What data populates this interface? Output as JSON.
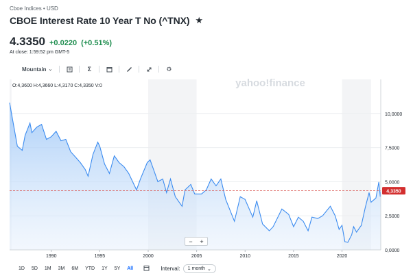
{
  "header": {
    "exchange": "Cboe Indices • USD",
    "title": "CBOE Interest Rate 10 Year T No (^TNX)",
    "star_icon": "star-icon"
  },
  "quote": {
    "price": "4.3350",
    "change": "+0.0220",
    "change_pct": "(+0.51%)",
    "close_time": "At close: 1:59:52 pm GMT-5",
    "change_color": "#1c8c4d"
  },
  "toolbar": {
    "chart_style": "Mountain",
    "icons": [
      "compare-icon",
      "indicators-icon",
      "events-icon",
      "draw-icon",
      "fullscreen-icon",
      "settings-icon"
    ]
  },
  "ohlc": "O:4,3600  H:4,3660  L:4,3170  C:4,3350  V:0",
  "watermark": "yahoo!finance",
  "chart_data": {
    "type": "area",
    "x_range": [
      1985.7,
      2024.0
    ],
    "ylim": [
      0,
      12.5
    ],
    "x_ticks": [
      "1990",
      "1995",
      "2000",
      "2005",
      "2010",
      "2015",
      "2020"
    ],
    "y_ticks": [
      "0,0000",
      "2,5000",
      "5,0000",
      "7,5000",
      "10,0000"
    ],
    "y_tick_values": [
      0,
      2.5,
      5,
      7.5,
      10
    ],
    "current_value": 4.335,
    "current_label": "4,3350",
    "line_color": "#3a8bf0",
    "points": [
      [
        1985.7,
        10.8
      ],
      [
        1986.0,
        9.6
      ],
      [
        1986.5,
        7.6
      ],
      [
        1987.0,
        7.3
      ],
      [
        1987.3,
        8.4
      ],
      [
        1987.8,
        9.3
      ],
      [
        1988.0,
        8.6
      ],
      [
        1988.5,
        9.0
      ],
      [
        1989.0,
        9.2
      ],
      [
        1989.5,
        8.1
      ],
      [
        1990.0,
        8.3
      ],
      [
        1990.5,
        8.7
      ],
      [
        1991.0,
        8.0
      ],
      [
        1991.5,
        8.1
      ],
      [
        1992.0,
        7.2
      ],
      [
        1992.5,
        6.8
      ],
      [
        1993.0,
        6.4
      ],
      [
        1993.5,
        5.9
      ],
      [
        1993.8,
        5.4
      ],
      [
        1994.3,
        7.0
      ],
      [
        1994.8,
        7.9
      ],
      [
        1995.0,
        7.6
      ],
      [
        1995.5,
        6.3
      ],
      [
        1996.0,
        5.6
      ],
      [
        1996.5,
        6.9
      ],
      [
        1997.0,
        6.4
      ],
      [
        1997.5,
        6.1
      ],
      [
        1998.0,
        5.6
      ],
      [
        1998.8,
        4.4
      ],
      [
        1999.2,
        5.2
      ],
      [
        1999.9,
        6.4
      ],
      [
        2000.2,
        6.6
      ],
      [
        2000.6,
        5.8
      ],
      [
        2001.0,
        5.0
      ],
      [
        2001.5,
        5.2
      ],
      [
        2001.9,
        4.2
      ],
      [
        2002.3,
        5.2
      ],
      [
        2002.8,
        3.9
      ],
      [
        2003.5,
        3.2
      ],
      [
        2003.8,
        4.4
      ],
      [
        2004.4,
        4.8
      ],
      [
        2004.8,
        4.1
      ],
      [
        2005.5,
        4.1
      ],
      [
        2006.0,
        4.4
      ],
      [
        2006.5,
        5.2
      ],
      [
        2007.0,
        4.7
      ],
      [
        2007.5,
        5.2
      ],
      [
        2008.0,
        3.7
      ],
      [
        2008.9,
        2.1
      ],
      [
        2009.5,
        3.9
      ],
      [
        2010.0,
        3.7
      ],
      [
        2010.8,
        2.4
      ],
      [
        2011.2,
        3.6
      ],
      [
        2011.8,
        1.9
      ],
      [
        2012.5,
        1.4
      ],
      [
        2012.9,
        1.7
      ],
      [
        2013.8,
        3.0
      ],
      [
        2014.5,
        2.6
      ],
      [
        2015.0,
        1.7
      ],
      [
        2015.5,
        2.4
      ],
      [
        2016.0,
        2.1
      ],
      [
        2016.5,
        1.4
      ],
      [
        2016.9,
        2.4
      ],
      [
        2017.5,
        2.3
      ],
      [
        2018.0,
        2.5
      ],
      [
        2018.8,
        3.2
      ],
      [
        2019.3,
        2.5
      ],
      [
        2019.7,
        1.5
      ],
      [
        2020.0,
        1.8
      ],
      [
        2020.3,
        0.6
      ],
      [
        2020.6,
        0.55
      ],
      [
        2021.0,
        1.1
      ],
      [
        2021.2,
        1.7
      ],
      [
        2021.5,
        1.3
      ],
      [
        2022.0,
        1.8
      ],
      [
        2022.4,
        3.1
      ],
      [
        2022.8,
        4.2
      ],
      [
        2023.0,
        3.5
      ],
      [
        2023.5,
        3.8
      ],
      [
        2023.8,
        4.98
      ],
      [
        2023.95,
        3.9
      ],
      [
        2024.0,
        4.33
      ]
    ]
  },
  "zoom": {
    "minus": "−",
    "plus": "+"
  },
  "ranges": [
    "1D",
    "5D",
    "1M",
    "3M",
    "6M",
    "YTD",
    "1Y",
    "5Y",
    "All"
  ],
  "active_range": "All",
  "interval": {
    "label": "Interval:",
    "value": "1 month"
  }
}
